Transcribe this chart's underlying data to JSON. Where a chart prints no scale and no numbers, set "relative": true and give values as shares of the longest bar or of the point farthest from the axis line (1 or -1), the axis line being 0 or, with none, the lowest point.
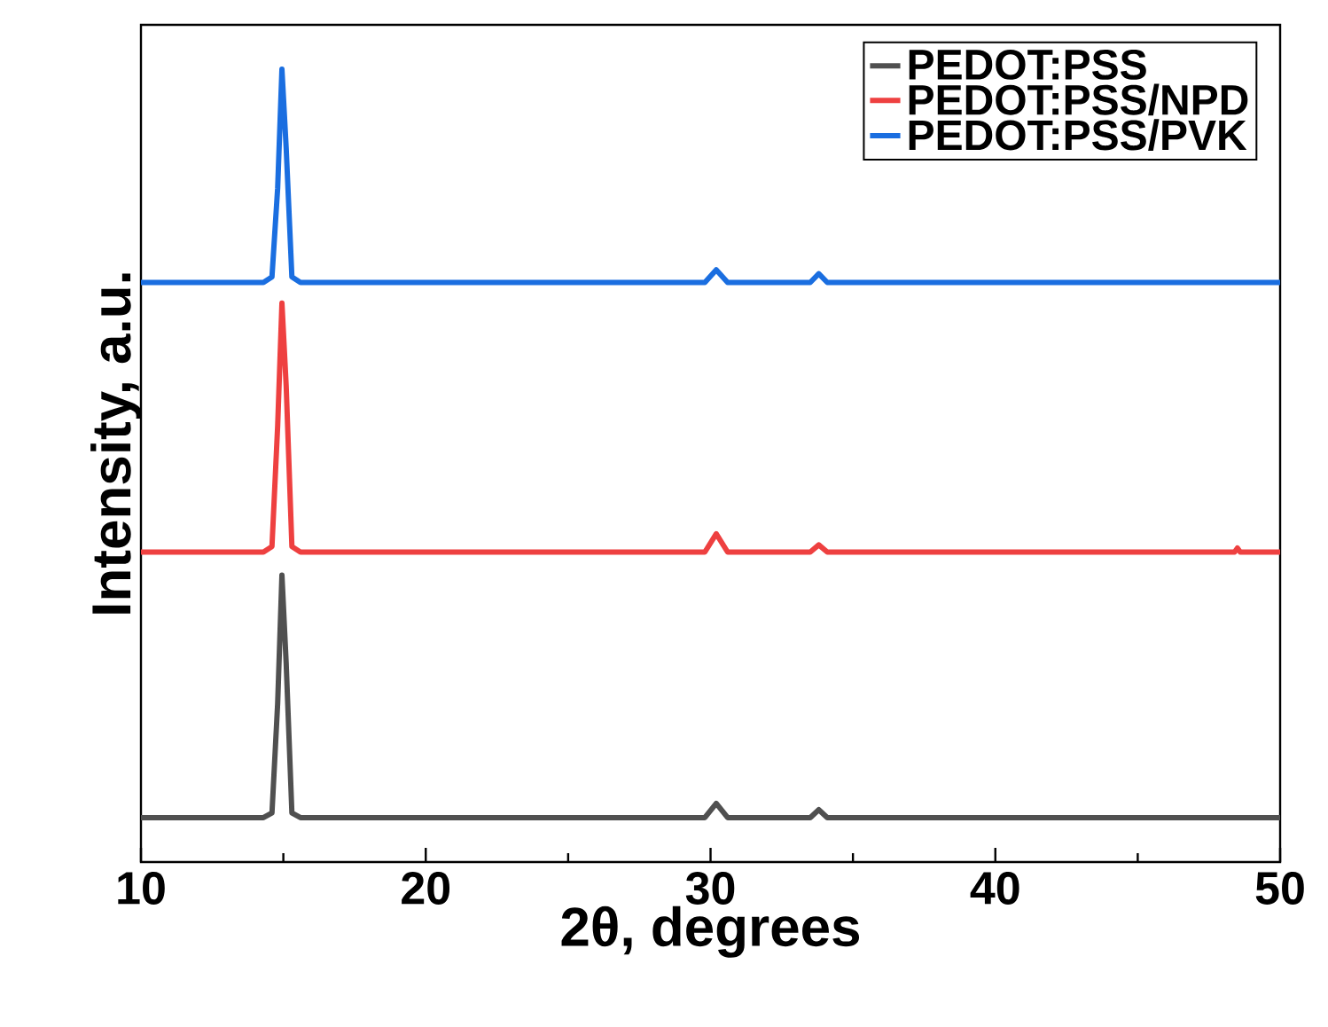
{
  "chart_data": {
    "type": "line",
    "relative": true,
    "xlabel": "2θ, degrees",
    "ylabel": "Intensity, a.u.",
    "xlim": [
      10,
      50
    ],
    "xticks": [
      10,
      20,
      30,
      40,
      50
    ],
    "legend": "top right",
    "series": [
      {
        "name": "PEDOT:PSS",
        "color": "#505050",
        "x": [
          10,
          14.3,
          14.6,
          14.8,
          14.95,
          15.1,
          15.3,
          15.6,
          29.8,
          30.2,
          30.6,
          33.5,
          33.8,
          34.1,
          50
        ],
        "values": [
          0.056,
          0.056,
          0.062,
          0.2,
          0.362,
          0.25,
          0.062,
          0.056,
          0.056,
          0.074,
          0.056,
          0.056,
          0.066,
          0.056,
          0.056
        ]
      },
      {
        "name": "PEDOT:PSS/NPD",
        "color": "#ee4040",
        "x": [
          10,
          14.3,
          14.6,
          14.8,
          14.95,
          15.1,
          15.3,
          15.6,
          29.8,
          30.2,
          30.6,
          33.5,
          33.8,
          34.1,
          48.4,
          48.5,
          48.6,
          50
        ],
        "values": [
          0.391,
          0.391,
          0.398,
          0.55,
          0.705,
          0.6,
          0.398,
          0.391,
          0.391,
          0.414,
          0.391,
          0.391,
          0.4,
          0.391,
          0.391,
          0.396,
          0.391,
          0.391
        ]
      },
      {
        "name": "PEDOT:PSS/PVK",
        "color": "#1a6ee0",
        "x": [
          10,
          14.3,
          14.6,
          14.8,
          14.95,
          15.1,
          15.3,
          15.6,
          29.8,
          30.2,
          30.6,
          33.5,
          33.8,
          34.1,
          50
        ],
        "values": [
          0.731,
          0.731,
          0.738,
          0.85,
          1.0,
          0.9,
          0.738,
          0.731,
          0.731,
          0.747,
          0.731,
          0.731,
          0.742,
          0.731,
          0.731
        ]
      }
    ]
  }
}
